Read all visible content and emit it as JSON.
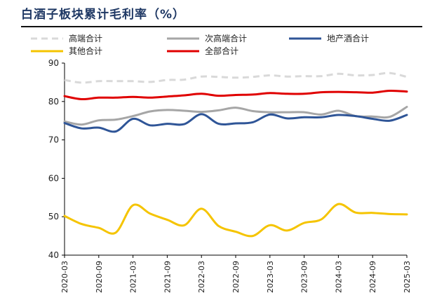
{
  "chart_data": {
    "type": "line",
    "title": "白酒子板块累计毛利率（%）",
    "xlabel": "",
    "ylabel": "",
    "ylim": [
      40,
      90
    ],
    "yticks": [
      40,
      50,
      60,
      70,
      80,
      90
    ],
    "grid": false,
    "legend_position": "top",
    "x": [
      "2020-03",
      "2020-06",
      "2020-09",
      "2020-12",
      "2021-03",
      "2021-06",
      "2021-09",
      "2021-12",
      "2022-03",
      "2022-06",
      "2022-09",
      "2022-12",
      "2023-03",
      "2023-06",
      "2023-09",
      "2023-12",
      "2024-03",
      "2024-06",
      "2024-09",
      "2024-12",
      "2025-03"
    ],
    "xtick_labels": [
      "2020-03",
      "2020-09",
      "2021-03",
      "2021-09",
      "2022-03",
      "2022-09",
      "2023-03",
      "2023-09",
      "2024-03",
      "2024-09",
      "2025-03"
    ],
    "series": [
      {
        "name": "高端合计",
        "color": "#d9d9d9",
        "dash": true,
        "values": [
          85.6,
          84.9,
          85.3,
          85.3,
          85.3,
          85.1,
          85.6,
          85.7,
          86.5,
          86.4,
          86.2,
          86.4,
          86.8,
          86.5,
          86.6,
          86.6,
          87.2,
          86.8,
          86.9,
          87.4,
          86.4
        ]
      },
      {
        "name": "次高端合计",
        "color": "#a6a6a6",
        "dash": false,
        "values": [
          74.8,
          74.0,
          75.1,
          75.3,
          76.2,
          77.4,
          77.8,
          77.6,
          77.3,
          77.7,
          78.4,
          77.5,
          77.2,
          77.2,
          77.2,
          76.6,
          77.6,
          76.2,
          76.1,
          76.0,
          78.6
        ]
      },
      {
        "name": "地产酒合计",
        "color": "#2f5597",
        "dash": false,
        "values": [
          74.4,
          73.0,
          73.2,
          72.2,
          75.5,
          73.8,
          74.2,
          74.1,
          76.7,
          74.2,
          74.3,
          74.6,
          76.6,
          75.6,
          75.9,
          75.9,
          76.5,
          76.2,
          75.5,
          75.0,
          76.5
        ]
      },
      {
        "name": "其他合计",
        "color": "#f5c400",
        "dash": false,
        "values": [
          50.2,
          48.1,
          47.1,
          45.9,
          53.0,
          50.8,
          49.2,
          47.8,
          52.1,
          47.6,
          46.1,
          45.0,
          47.8,
          46.4,
          48.4,
          49.3,
          53.3,
          51.1,
          51.0,
          50.7,
          50.6
        ]
      },
      {
        "name": "全部合计",
        "color": "#e00000",
        "dash": false,
        "values": [
          81.4,
          80.6,
          81.0,
          81.0,
          81.2,
          81.0,
          81.3,
          81.6,
          82.0,
          81.5,
          81.7,
          81.8,
          82.2,
          82.0,
          82.0,
          82.4,
          82.5,
          82.4,
          82.3,
          82.8,
          82.6
        ]
      }
    ]
  }
}
